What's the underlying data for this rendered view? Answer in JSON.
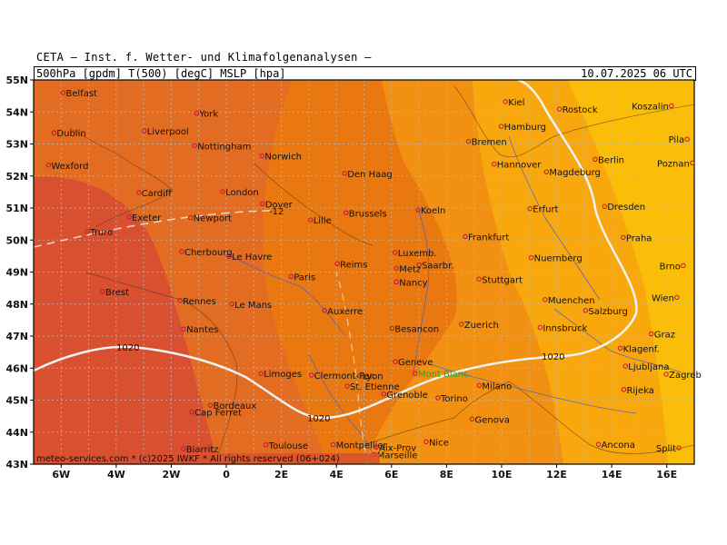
{
  "header": {
    "institute": "CETA — Inst. f. Wetter- und Klimafolgenanalysen —",
    "fields": "500hPa [gpdm] T(500) [degC] MSLP [hpa]",
    "valid": "10.07.2025 06 UTC"
  },
  "footer": "meteo-services.com * (c)2025 IWKF * All rights reserved (06+024)",
  "map": {
    "lon_range": [
      -7,
      17
    ],
    "lat_range": [
      43,
      55
    ],
    "lat_ticks": [
      "43N",
      "44N",
      "45N",
      "46N",
      "47N",
      "48N",
      "49N",
      "50N",
      "51N",
      "52N",
      "53N",
      "54N",
      "55N"
    ],
    "lon_ticks": [
      "6W",
      "4W",
      "2W",
      "0",
      "2E",
      "4E",
      "6E",
      "8E",
      "10E",
      "12E",
      "14E",
      "16E"
    ],
    "colors": {
      "t_very_warm": "#d8502f",
      "t_warm": "#e26c22",
      "t_mid": "#e8780f",
      "t_mild": "#f29012",
      "t_cool": "#f8a70c",
      "t_cooler": "#fbbe08",
      "isobar": "#f2f2f2",
      "grid": "#b8b8b8",
      "city": "#c8103a",
      "river": "#4a5ed0"
    },
    "isobar_labels": [
      "1020",
      "1020",
      "1020"
    ],
    "dashed_label": "-12",
    "highlight_city": "Mont Blanc",
    "cities": [
      {
        "name": "Belfast",
        "lon": -5.93,
        "lat": 54.6
      },
      {
        "name": "Dublin",
        "lon": -6.26,
        "lat": 53.35
      },
      {
        "name": "Wexford",
        "lon": -6.46,
        "lat": 52.34
      },
      {
        "name": "Liverpool",
        "lon": -2.98,
        "lat": 53.41
      },
      {
        "name": "York",
        "lon": -1.08,
        "lat": 53.96
      },
      {
        "name": "Nottingham",
        "lon": -1.15,
        "lat": 52.95
      },
      {
        "name": "Norwich",
        "lon": 1.3,
        "lat": 52.63
      },
      {
        "name": "Cardiff",
        "lon": -3.18,
        "lat": 51.48
      },
      {
        "name": "London",
        "lon": -0.13,
        "lat": 51.51
      },
      {
        "name": "Dover",
        "lon": 1.31,
        "lat": 51.13
      },
      {
        "name": "Exeter",
        "lon": -3.53,
        "lat": 50.72
      },
      {
        "name": "Newport",
        "lon": -1.3,
        "lat": 50.7
      },
      {
        "name": "Truro",
        "lon": -5.05,
        "lat": 50.26
      },
      {
        "name": "Den Haag",
        "lon": 4.3,
        "lat": 52.08
      },
      {
        "name": "Brussels",
        "lon": 4.35,
        "lat": 50.85
      },
      {
        "name": "Lille",
        "lon": 3.06,
        "lat": 50.63
      },
      {
        "name": "Le Havre",
        "lon": 0.1,
        "lat": 49.49
      },
      {
        "name": "Cherbourg",
        "lon": -1.62,
        "lat": 49.64
      },
      {
        "name": "Paris",
        "lon": 2.35,
        "lat": 48.86
      },
      {
        "name": "Reims",
        "lon": 4.03,
        "lat": 49.26
      },
      {
        "name": "Brest",
        "lon": -4.49,
        "lat": 48.39
      },
      {
        "name": "Rennes",
        "lon": -1.68,
        "lat": 48.11
      },
      {
        "name": "Le Mans",
        "lon": 0.2,
        "lat": 48.0
      },
      {
        "name": "Nantes",
        "lon": -1.55,
        "lat": 47.22
      },
      {
        "name": "Auxerre",
        "lon": 3.57,
        "lat": 47.8
      },
      {
        "name": "Limoges",
        "lon": 1.26,
        "lat": 45.83
      },
      {
        "name": "Clermont-Fer.",
        "lon": 3.09,
        "lat": 45.78
      },
      {
        "name": "Bordeaux",
        "lon": -0.58,
        "lat": 44.84
      },
      {
        "name": "Cap Ferret",
        "lon": -1.25,
        "lat": 44.63
      },
      {
        "name": "Biarritz",
        "lon": -1.56,
        "lat": 43.48
      },
      {
        "name": "Toulouse",
        "lon": 1.44,
        "lat": 43.6
      },
      {
        "name": "Montpellier",
        "lon": 3.88,
        "lat": 43.61
      },
      {
        "name": "Lyon",
        "lon": 4.84,
        "lat": 45.76
      },
      {
        "name": "St. Etienne",
        "lon": 4.39,
        "lat": 45.44
      },
      {
        "name": "Grenoble",
        "lon": 5.72,
        "lat": 45.19
      },
      {
        "name": "Aix-Prov",
        "lon": 5.45,
        "lat": 43.53
      },
      {
        "name": "Marseille",
        "lon": 5.37,
        "lat": 43.3
      },
      {
        "name": "Nice",
        "lon": 7.26,
        "lat": 43.7
      },
      {
        "name": "Geneve",
        "lon": 6.14,
        "lat": 46.2
      },
      {
        "name": "Mont Blanc",
        "lon": 6.86,
        "lat": 45.83
      },
      {
        "name": "Besancon",
        "lon": 6.02,
        "lat": 47.24
      },
      {
        "name": "Nancy",
        "lon": 6.18,
        "lat": 48.69
      },
      {
        "name": "Metz",
        "lon": 6.18,
        "lat": 49.12
      },
      {
        "name": "Luxemb.",
        "lon": 6.13,
        "lat": 49.61
      },
      {
        "name": "Saarbr.",
        "lon": 7.0,
        "lat": 49.23
      },
      {
        "name": "Koeln",
        "lon": 6.96,
        "lat": 50.94
      },
      {
        "name": "Frankfurt",
        "lon": 8.68,
        "lat": 50.11
      },
      {
        "name": "Stuttgart",
        "lon": 9.18,
        "lat": 48.78
      },
      {
        "name": "Zuerich",
        "lon": 8.54,
        "lat": 47.37
      },
      {
        "name": "Torino",
        "lon": 7.69,
        "lat": 45.07
      },
      {
        "name": "Genova",
        "lon": 8.93,
        "lat": 44.41
      },
      {
        "name": "Milano",
        "lon": 9.19,
        "lat": 45.46
      },
      {
        "name": "Innsbruck",
        "lon": 11.4,
        "lat": 47.27
      },
      {
        "name": "Muenchen",
        "lon": 11.58,
        "lat": 48.14
      },
      {
        "name": "Salzburg",
        "lon": 13.05,
        "lat": 47.8
      },
      {
        "name": "Nuernberg",
        "lon": 11.08,
        "lat": 49.45
      },
      {
        "name": "Erfurt",
        "lon": 11.03,
        "lat": 50.98
      },
      {
        "name": "Bremen",
        "lon": 8.8,
        "lat": 53.08
      },
      {
        "name": "Hamburg",
        "lon": 9.99,
        "lat": 53.55
      },
      {
        "name": "Kiel",
        "lon": 10.14,
        "lat": 54.32
      },
      {
        "name": "Rostock",
        "lon": 12.1,
        "lat": 54.09
      },
      {
        "name": "Hannover",
        "lon": 9.73,
        "lat": 52.37
      },
      {
        "name": "Magdeburg",
        "lon": 11.63,
        "lat": 52.13
      },
      {
        "name": "Berlin",
        "lon": 13.4,
        "lat": 52.52
      },
      {
        "name": "Dresden",
        "lon": 13.74,
        "lat": 51.05
      },
      {
        "name": "Praha",
        "lon": 14.42,
        "lat": 50.08
      },
      {
        "name": "Brno",
        "lon": 16.6,
        "lat": 49.2
      },
      {
        "name": "Wien",
        "lon": 16.37,
        "lat": 48.21
      },
      {
        "name": "Graz",
        "lon": 15.44,
        "lat": 47.07
      },
      {
        "name": "Klagenf.",
        "lon": 14.31,
        "lat": 46.62
      },
      {
        "name": "Ljubljana",
        "lon": 14.5,
        "lat": 46.06
      },
      {
        "name": "Zagreb",
        "lon": 15.98,
        "lat": 45.81
      },
      {
        "name": "Rijeka",
        "lon": 14.44,
        "lat": 45.33
      },
      {
        "name": "Ancona",
        "lon": 13.52,
        "lat": 43.62
      },
      {
        "name": "Split",
        "lon": 16.44,
        "lat": 43.51
      },
      {
        "name": "Pila",
        "lon": 16.74,
        "lat": 53.15
      },
      {
        "name": "Poznan",
        "lon": 16.93,
        "lat": 52.41
      },
      {
        "name": "Koszalin",
        "lon": 16.17,
        "lat": 54.19
      }
    ]
  }
}
